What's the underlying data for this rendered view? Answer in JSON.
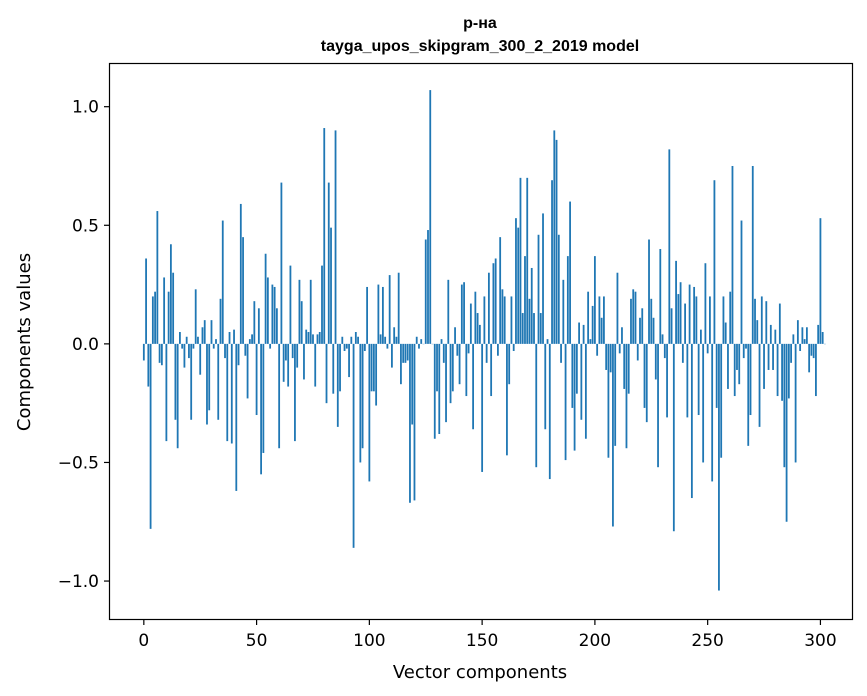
{
  "chart_data": {
    "type": "bar",
    "title_line1": "р-на",
    "title_line2": "tayga_upos_skipgram_300_2_2019 model",
    "xlabel": "Vector components",
    "ylabel": "Components values",
    "xlim": [
      -15,
      314
    ],
    "ylim": [
      -1.16,
      1.18
    ],
    "xticks": [
      0,
      50,
      100,
      150,
      200,
      250,
      300
    ],
    "xtick_labels": [
      "0",
      "50",
      "100",
      "150",
      "200",
      "250",
      "300"
    ],
    "yticks": [
      -1.0,
      -0.5,
      0.0,
      0.5,
      1.0
    ],
    "ytick_labels": [
      "−1.0",
      "−0.5",
      "0.0",
      "0.5",
      "1.0"
    ],
    "color": "#1f77b4",
    "values": [
      -0.07,
      0.36,
      -0.18,
      -0.78,
      0.2,
      0.22,
      0.56,
      -0.08,
      -0.09,
      0.28,
      -0.41,
      0.22,
      0.42,
      0.3,
      -0.32,
      -0.44,
      0.05,
      -0.02,
      -0.1,
      0.03,
      -0.06,
      -0.32,
      -0.02,
      0.23,
      0.03,
      -0.13,
      0.07,
      0.1,
      -0.34,
      -0.28,
      0.1,
      -0.02,
      0.02,
      -0.32,
      0.19,
      0.52,
      -0.06,
      -0.41,
      0.05,
      -0.42,
      0.06,
      -0.62,
      -0.09,
      0.59,
      0.45,
      -0.05,
      -0.23,
      0.02,
      0.04,
      0.18,
      -0.3,
      0.15,
      -0.55,
      -0.46,
      0.38,
      0.28,
      -0.02,
      0.25,
      0.24,
      0.15,
      -0.44,
      0.68,
      -0.16,
      -0.07,
      -0.18,
      0.33,
      -0.06,
      -0.41,
      -0.1,
      0.27,
      0.18,
      -0.15,
      0.06,
      0.05,
      0.27,
      0.04,
      -0.18,
      0.04,
      0.05,
      0.33,
      0.91,
      -0.25,
      0.68,
      0.49,
      -0.21,
      0.9,
      -0.35,
      -0.2,
      0.03,
      -0.03,
      -0.02,
      -0.14,
      0.03,
      -0.86,
      0.05,
      0.03,
      -0.5,
      -0.44,
      -0.03,
      0.24,
      -0.58,
      -0.2,
      -0.2,
      -0.26,
      0.25,
      0.04,
      0.24,
      0.03,
      -0.02,
      0.29,
      -0.1,
      0.07,
      0.03,
      0.3,
      -0.17,
      -0.08,
      -0.08,
      -0.07,
      -0.67,
      -0.34,
      -0.66,
      0.03,
      -0.02,
      0.02,
      0.0,
      0.44,
      0.48,
      1.07,
      0.0,
      -0.4,
      -0.2,
      -0.38,
      0.02,
      -0.08,
      -0.33,
      0.27,
      -0.25,
      -0.2,
      0.07,
      -0.05,
      -0.17,
      0.25,
      0.26,
      -0.22,
      -0.04,
      0.17,
      -0.36,
      0.22,
      0.13,
      0.08,
      -0.54,
      0.2,
      -0.08,
      0.3,
      -0.22,
      0.34,
      0.36,
      -0.05,
      0.45,
      0.23,
      0.2,
      -0.47,
      -0.17,
      0.2,
      -0.03,
      0.53,
      0.49,
      0.7,
      0.13,
      0.37,
      0.7,
      0.19,
      0.32,
      0.13,
      -0.52,
      0.46,
      0.13,
      0.55,
      -0.36,
      0.02,
      -0.57,
      0.69,
      0.9,
      0.86,
      0.46,
      -0.08,
      0.27,
      -0.49,
      0.37,
      0.6,
      -0.27,
      -0.45,
      -0.21,
      0.09,
      -0.32,
      0.08,
      -0.4,
      0.22,
      0.02,
      0.16,
      0.37,
      -0.05,
      0.2,
      0.11,
      0.2,
      -0.11,
      -0.48,
      -0.12,
      -0.77,
      -0.43,
      0.3,
      -0.04,
      0.07,
      -0.19,
      -0.44,
      -0.21,
      0.19,
      0.23,
      0.22,
      -0.07,
      0.11,
      0.15,
      -0.27,
      -0.33,
      0.44,
      0.19,
      0.11,
      -0.15,
      -0.52,
      0.4,
      0.04,
      -0.06,
      -0.31,
      0.82,
      0.15,
      -0.79,
      0.35,
      0.21,
      0.26,
      -0.08,
      0.17,
      -0.31,
      0.25,
      -0.65,
      0.24,
      0.2,
      -0.3,
      0.06,
      -0.5,
      0.34,
      -0.04,
      0.2,
      -0.58,
      0.69,
      -0.27,
      -1.04,
      -0.48,
      0.2,
      0.09,
      -0.19,
      0.22,
      0.75,
      -0.22,
      -0.11,
      -0.17,
      0.52,
      -0.06,
      -0.02,
      -0.43,
      -0.3,
      0.75,
      0.19,
      0.1,
      -0.35,
      0.2,
      -0.19,
      0.18,
      -0.11,
      0.08,
      -0.11,
      0.06,
      -0.22,
      0.17,
      -0.24,
      -0.52,
      -0.75,
      -0.23,
      -0.08,
      0.04,
      -0.5,
      0.1,
      -0.03,
      0.07,
      0.02,
      0.07,
      -0.12,
      -0.05,
      -0.06,
      -0.22,
      0.08,
      0.53,
      0.05,
      0.0
    ]
  }
}
